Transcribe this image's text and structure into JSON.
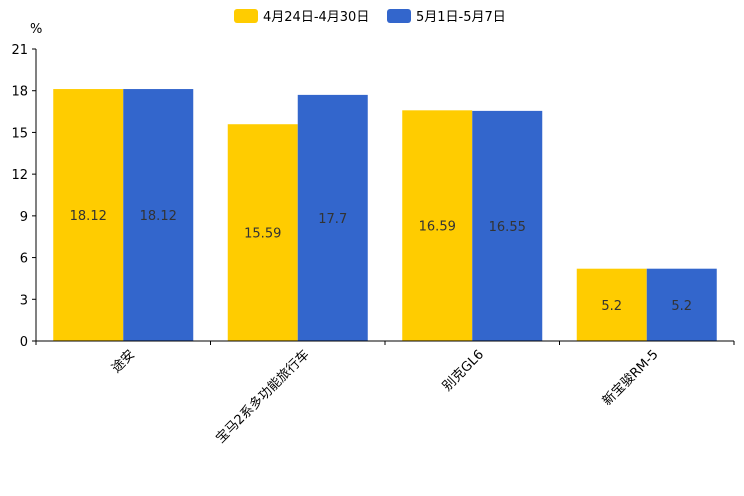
{
  "chart_data": {
    "type": "bar",
    "title": "",
    "xlabel": "",
    "ylabel": "%",
    "ylim": [
      0,
      21
    ],
    "yticks": [
      0,
      3,
      6,
      9,
      12,
      15,
      18,
      21
    ],
    "legend_position": "top-center",
    "grid": false,
    "categories": [
      "途安",
      "宝马2系多功能旅行车",
      "别克GL6",
      "新宝骏RM-5"
    ],
    "series": [
      {
        "name": "4月24日-4月30日",
        "color": "#FFCC00",
        "values": [
          18.12,
          15.59,
          16.59,
          5.2
        ],
        "labels": [
          "18.12",
          "15.59",
          "16.59",
          "5.2"
        ]
      },
      {
        "name": "5月1日-5月7日",
        "color": "#3366CC",
        "values": [
          18.12,
          17.7,
          16.55,
          5.2
        ],
        "labels": [
          "18.12",
          "17.7",
          "16.55",
          "5.2"
        ]
      }
    ]
  }
}
